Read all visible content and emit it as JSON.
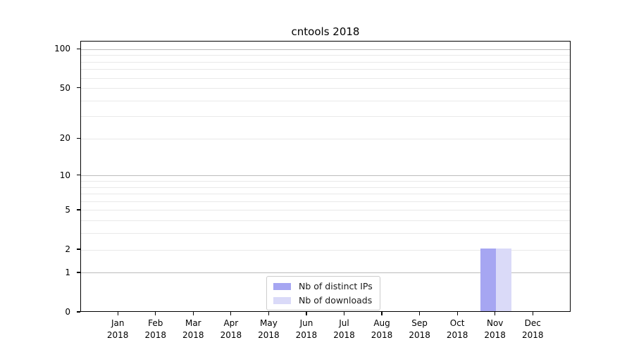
{
  "chart_data": {
    "type": "bar",
    "title": "cntools 2018",
    "x_categories": [
      "Jan",
      "Feb",
      "Mar",
      "Apr",
      "May",
      "Jun",
      "Jul",
      "Aug",
      "Sep",
      "Oct",
      "Nov",
      "Dec"
    ],
    "x_year": "2018",
    "series": [
      {
        "name": "Nb of distinct IPs",
        "color": "#a6a6f2",
        "values": [
          0,
          0,
          0,
          0,
          0,
          0,
          0,
          0,
          0,
          0,
          2,
          0
        ]
      },
      {
        "name": "Nb of downloads",
        "color": "#dadaf8",
        "values": [
          0,
          0,
          0,
          0,
          0,
          0,
          0,
          0,
          0,
          0,
          2,
          0
        ]
      }
    ],
    "y_axis": {
      "scale": "log1p",
      "min": 0,
      "max": 115,
      "tick_values": [
        0,
        1,
        2,
        5,
        10,
        20,
        50,
        100
      ],
      "tick_labels": [
        "0",
        "1",
        "2",
        "5",
        "10",
        "20",
        "50",
        "100"
      ],
      "grid_major_values": [
        1,
        10,
        100
      ],
      "grid_minor_values": [
        2,
        3,
        4,
        5,
        6,
        7,
        8,
        9,
        20,
        30,
        40,
        50,
        60,
        70,
        80,
        90
      ]
    },
    "grid": true,
    "legend": {
      "position": "lower center",
      "entries": [
        {
          "label": "Nb of distinct IPs",
          "color": "#a6a6f2"
        },
        {
          "label": "Nb of downloads",
          "color": "#dadaf8"
        }
      ]
    }
  },
  "colors": {
    "background": "#ffffff",
    "spine": "#000000",
    "grid_major": "#bcbcbc",
    "grid_minor": "#e9e9e9",
    "legend_border": "#cccccc",
    "text": "#000000"
  }
}
